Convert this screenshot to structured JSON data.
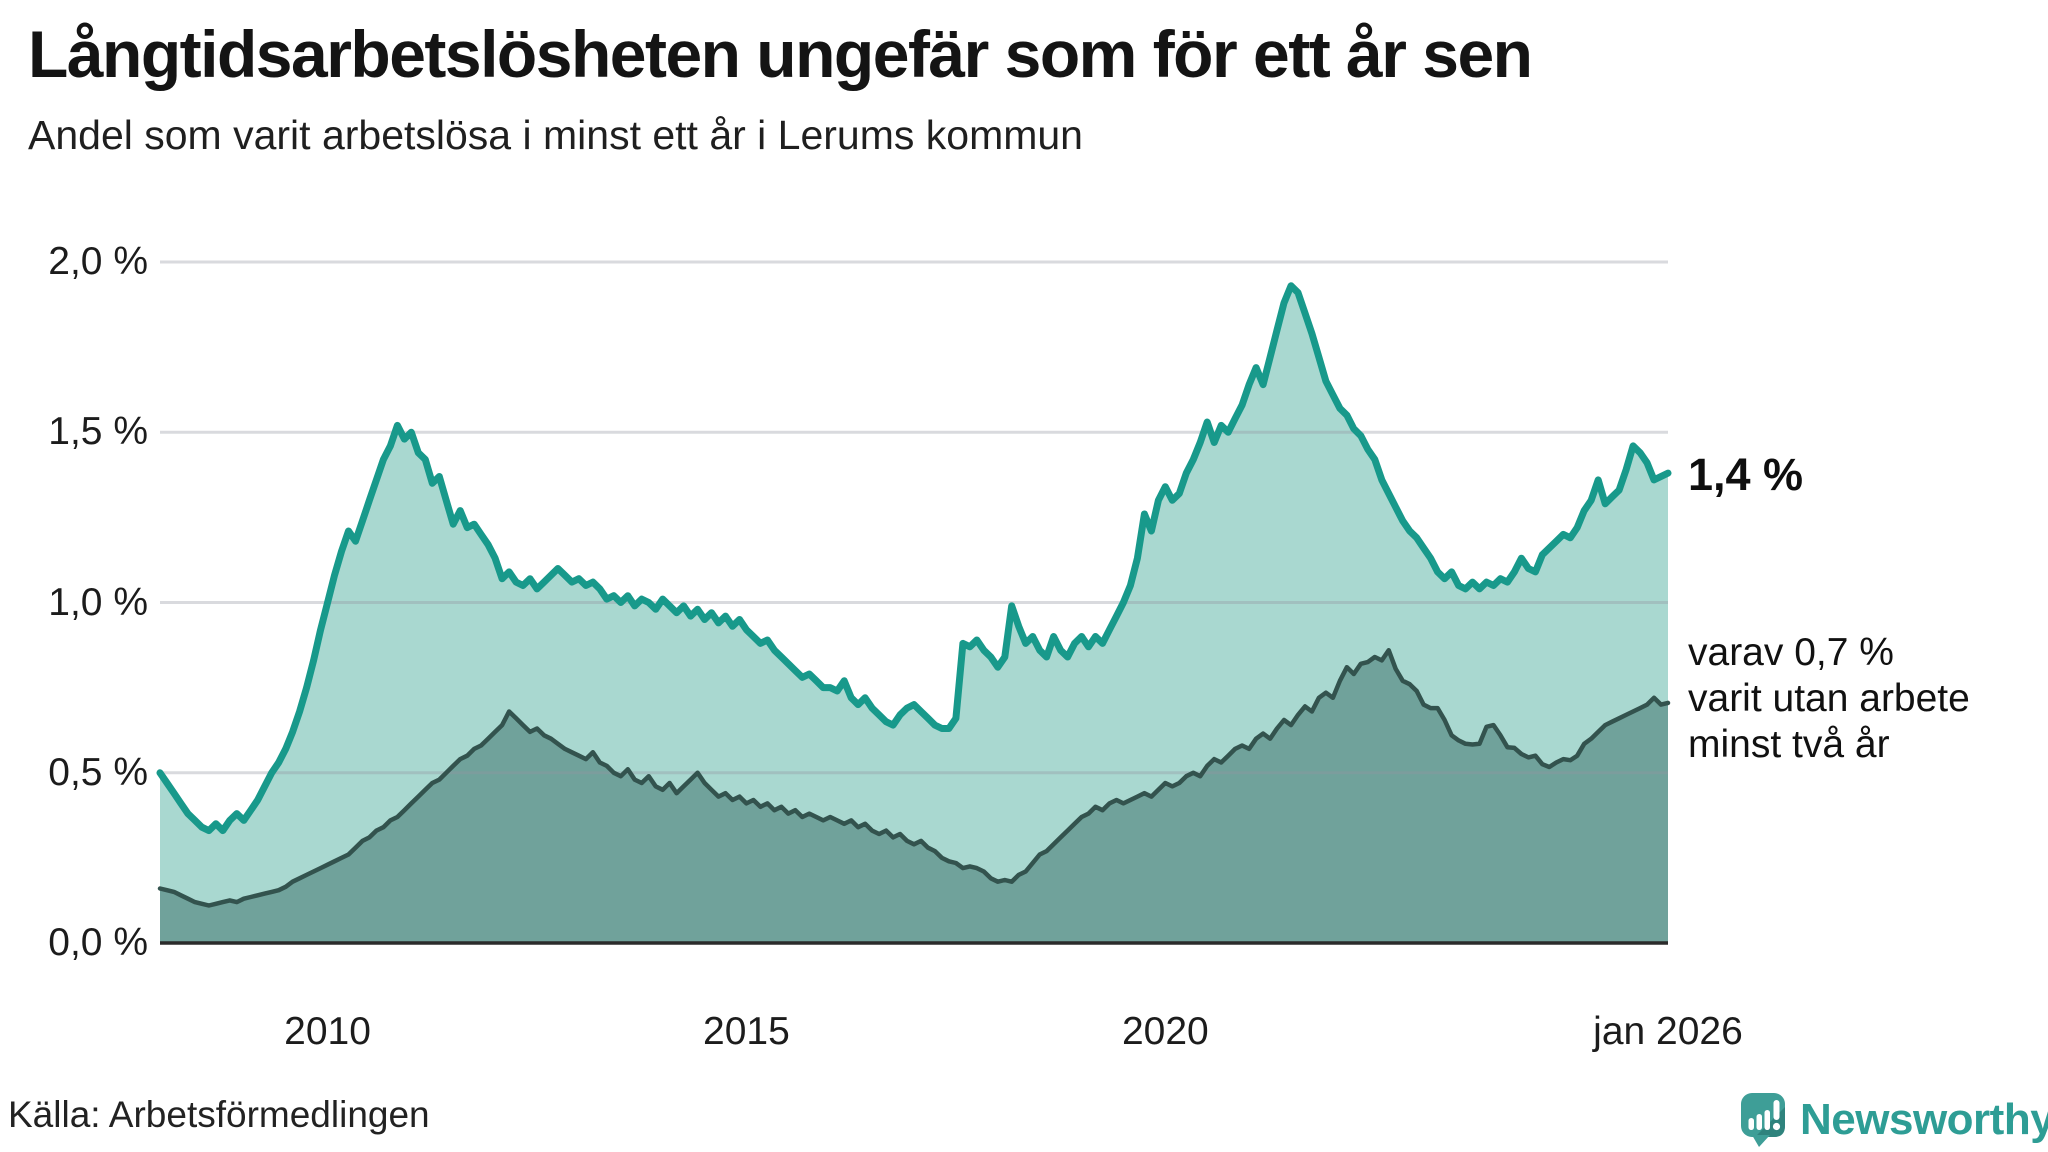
{
  "title": "Långtidsarbetslösheten ungefär som för ett år sen",
  "subtitle": "Andel som varit arbetslösa i minst ett år i Lerums kommun",
  "source": "Källa: Arbetsförmedlingen",
  "logo": {
    "text": "Newsworthy"
  },
  "annotations": {
    "latest_total": "1,4 %",
    "secondary_lines": [
      "varav 0,7 %",
      "varit utan arbete",
      "minst två år"
    ]
  },
  "colors": {
    "total_line": "#18998B",
    "total_fill": "#A9D8D0",
    "two_year_line": "#33534E",
    "two_year_fill": "#70A29B",
    "gridline": "rgba(146,150,160,0.35)",
    "axis_line": "#2B2B2B",
    "logo_teal": "#3E9E97",
    "logo_teal_dark": "#2F837D",
    "text": "#141414"
  },
  "chart_data": {
    "type": "area",
    "title": "Långtidsarbetslösheten ungefär som för ett år sen",
    "subtitle": "Andel som varit arbetslösa i minst ett år i Lerums kommun",
    "x_start": "2008-01",
    "x_end": "2026-01",
    "interval": "monthly",
    "ylim": [
      0,
      2.05
    ],
    "grid": true,
    "y_ticks": [
      {
        "label": "0,0 %",
        "value": 0.0
      },
      {
        "label": "0,5 %",
        "value": 0.5
      },
      {
        "label": "1,0 %",
        "value": 1.0
      },
      {
        "label": "1,5 %",
        "value": 1.5
      },
      {
        "label": "2,0 %",
        "value": 2.0
      }
    ],
    "x_ticks": [
      {
        "label": "2010",
        "year": 2010
      },
      {
        "label": "2015",
        "year": 2015
      },
      {
        "label": "2020",
        "year": 2020
      },
      {
        "label": "jan 2026",
        "year": 2026
      }
    ],
    "series": [
      {
        "name": "Andel som varit arbetslösa i minst ett år",
        "end_label": "1,4 %",
        "monthly_values": [
          0.5,
          0.47,
          0.44,
          0.41,
          0.38,
          0.36,
          0.34,
          0.33,
          0.35,
          0.33,
          0.36,
          0.38,
          0.36,
          0.39,
          0.42,
          0.46,
          0.5,
          0.53,
          0.57,
          0.62,
          0.68,
          0.75,
          0.83,
          0.92,
          1.0,
          1.08,
          1.15,
          1.21,
          1.18,
          1.24,
          1.3,
          1.36,
          1.42,
          1.46,
          1.52,
          1.48,
          1.5,
          1.44,
          1.42,
          1.35,
          1.37,
          1.3,
          1.23,
          1.27,
          1.22,
          1.23,
          1.2,
          1.17,
          1.13,
          1.07,
          1.09,
          1.06,
          1.05,
          1.07,
          1.04,
          1.06,
          1.08,
          1.1,
          1.08,
          1.06,
          1.07,
          1.05,
          1.06,
          1.04,
          1.01,
          1.02,
          1.0,
          1.02,
          0.99,
          1.01,
          1.0,
          0.98,
          1.01,
          0.99,
          0.97,
          0.99,
          0.96,
          0.98,
          0.95,
          0.97,
          0.94,
          0.96,
          0.93,
          0.95,
          0.92,
          0.9,
          0.88,
          0.89,
          0.86,
          0.84,
          0.82,
          0.8,
          0.78,
          0.79,
          0.77,
          0.75,
          0.75,
          0.74,
          0.77,
          0.72,
          0.7,
          0.72,
          0.69,
          0.67,
          0.65,
          0.64,
          0.67,
          0.69,
          0.7,
          0.68,
          0.66,
          0.64,
          0.63,
          0.63,
          0.66,
          0.88,
          0.87,
          0.89,
          0.86,
          0.84,
          0.81,
          0.84,
          0.99,
          0.93,
          0.88,
          0.9,
          0.86,
          0.84,
          0.9,
          0.86,
          0.84,
          0.88,
          0.9,
          0.87,
          0.9,
          0.88,
          0.92,
          0.96,
          1.0,
          1.05,
          1.13,
          1.26,
          1.21,
          1.3,
          1.34,
          1.3,
          1.32,
          1.38,
          1.42,
          1.47,
          1.53,
          1.47,
          1.52,
          1.5,
          1.54,
          1.58,
          1.64,
          1.69,
          1.64,
          1.72,
          1.8,
          1.88,
          1.93,
          1.91,
          1.85,
          1.79,
          1.72,
          1.65,
          1.61,
          1.57,
          1.55,
          1.51,
          1.49,
          1.45,
          1.42,
          1.36,
          1.32,
          1.28,
          1.24,
          1.21,
          1.19,
          1.16,
          1.13,
          1.09,
          1.07,
          1.09,
          1.05,
          1.04,
          1.06,
          1.04,
          1.06,
          1.05,
          1.07,
          1.06,
          1.09,
          1.13,
          1.1,
          1.09,
          1.14,
          1.16,
          1.18,
          1.2,
          1.19,
          1.22,
          1.27,
          1.3,
          1.36,
          1.29,
          1.31,
          1.33,
          1.39,
          1.46,
          1.44,
          1.41,
          1.36,
          1.37,
          1.38
        ]
      },
      {
        "name": "varav varit utan arbete minst två år",
        "end_label": "varav 0,7 % varit utan arbete minst två år",
        "monthly_values": [
          0.16,
          0.155,
          0.15,
          0.14,
          0.13,
          0.12,
          0.115,
          0.11,
          0.115,
          0.12,
          0.125,
          0.12,
          0.13,
          0.135,
          0.14,
          0.145,
          0.15,
          0.155,
          0.165,
          0.18,
          0.19,
          0.2,
          0.21,
          0.22,
          0.23,
          0.24,
          0.25,
          0.26,
          0.28,
          0.3,
          0.31,
          0.33,
          0.34,
          0.36,
          0.37,
          0.39,
          0.41,
          0.43,
          0.45,
          0.47,
          0.48,
          0.5,
          0.52,
          0.54,
          0.55,
          0.57,
          0.58,
          0.6,
          0.62,
          0.64,
          0.68,
          0.66,
          0.64,
          0.62,
          0.63,
          0.61,
          0.6,
          0.585,
          0.57,
          0.56,
          0.55,
          0.54,
          0.56,
          0.53,
          0.52,
          0.5,
          0.49,
          0.51,
          0.48,
          0.47,
          0.49,
          0.46,
          0.45,
          0.47,
          0.44,
          0.46,
          0.48,
          0.5,
          0.47,
          0.45,
          0.43,
          0.44,
          0.42,
          0.43,
          0.41,
          0.42,
          0.4,
          0.41,
          0.39,
          0.4,
          0.38,
          0.39,
          0.37,
          0.38,
          0.37,
          0.36,
          0.37,
          0.36,
          0.35,
          0.36,
          0.34,
          0.35,
          0.33,
          0.32,
          0.33,
          0.31,
          0.32,
          0.3,
          0.29,
          0.3,
          0.28,
          0.27,
          0.25,
          0.24,
          0.235,
          0.22,
          0.225,
          0.22,
          0.21,
          0.19,
          0.18,
          0.185,
          0.18,
          0.2,
          0.21,
          0.235,
          0.26,
          0.27,
          0.29,
          0.31,
          0.33,
          0.35,
          0.37,
          0.38,
          0.4,
          0.39,
          0.41,
          0.42,
          0.41,
          0.42,
          0.43,
          0.44,
          0.43,
          0.45,
          0.47,
          0.46,
          0.47,
          0.49,
          0.5,
          0.49,
          0.52,
          0.54,
          0.53,
          0.55,
          0.57,
          0.58,
          0.57,
          0.6,
          0.615,
          0.6,
          0.63,
          0.655,
          0.64,
          0.67,
          0.695,
          0.68,
          0.72,
          0.735,
          0.72,
          0.77,
          0.81,
          0.79,
          0.82,
          0.825,
          0.84,
          0.83,
          0.86,
          0.805,
          0.77,
          0.76,
          0.74,
          0.7,
          0.69,
          0.69,
          0.655,
          0.61,
          0.595,
          0.585,
          0.583,
          0.585,
          0.635,
          0.64,
          0.61,
          0.575,
          0.573,
          0.555,
          0.545,
          0.55,
          0.525,
          0.517,
          0.53,
          0.54,
          0.537,
          0.55,
          0.585,
          0.6,
          0.62,
          0.64,
          0.65,
          0.66,
          0.67,
          0.68,
          0.69,
          0.7,
          0.72,
          0.7,
          0.705
        ]
      }
    ]
  }
}
